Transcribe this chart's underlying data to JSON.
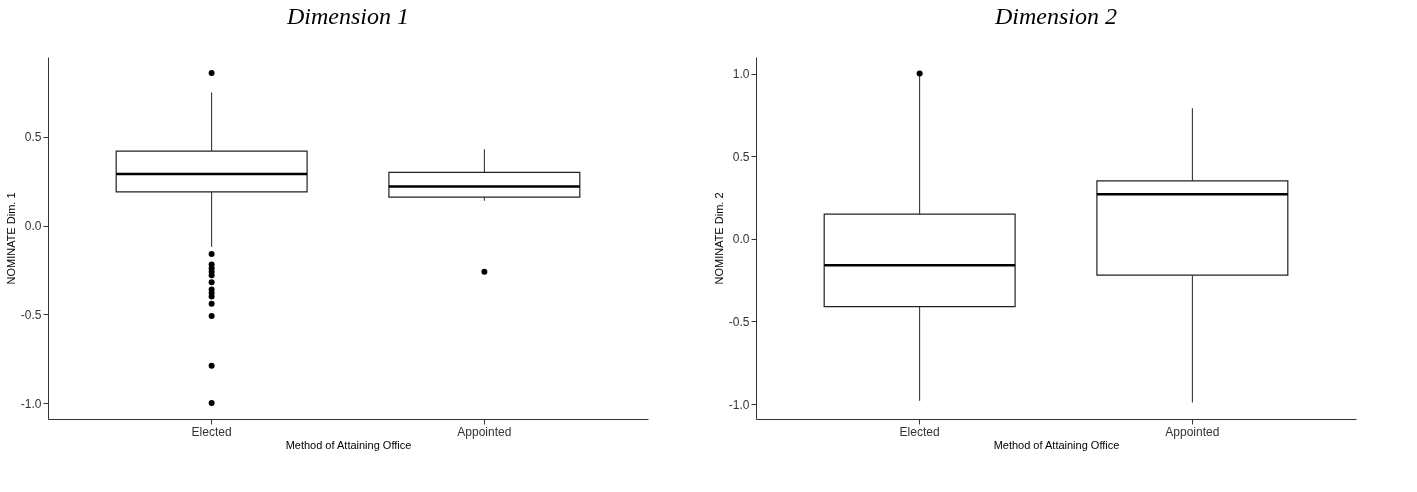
{
  "chart_data": [
    {
      "type": "box",
      "title": "Dimension 1",
      "xlabel": "Method of Attaining Office",
      "ylabel": "NOMINATE Dim. 1",
      "categories": [
        "Elected",
        "Appointed"
      ],
      "boxes": [
        {
          "low": -0.12,
          "q1": 0.19,
          "median": 0.29,
          "q3": 0.42,
          "high": 0.75,
          "outliers": [
            0.86,
            -0.16,
            -0.22,
            -0.24,
            -0.26,
            -0.28,
            -0.32,
            -0.36,
            -0.38,
            -0.4,
            -0.44,
            -0.51,
            -0.79,
            -1.0
          ]
        },
        {
          "low": 0.14,
          "q1": 0.16,
          "median": 0.22,
          "q3": 0.3,
          "high": 0.43,
          "outliers": [
            -0.26
          ]
        }
      ],
      "ylim": [
        -1.09,
        0.95
      ],
      "yticks": [
        {
          "value": -1,
          "label": "-1.0"
        },
        {
          "value": -0.5,
          "label": "-0.5"
        },
        {
          "value": 0,
          "label": "0.0"
        },
        {
          "value": 0.5,
          "label": "0.5"
        }
      ]
    },
    {
      "type": "box",
      "title": "Dimension 2",
      "xlabel": "Method of Attaining Office",
      "ylabel": "NOMINATE Dim. 2",
      "categories": [
        "Elected",
        "Appointed"
      ],
      "boxes": [
        {
          "low": -0.98,
          "q1": -0.41,
          "median": -0.16,
          "q3": 0.15,
          "high": 0.99,
          "outliers": [
            1.0
          ]
        },
        {
          "low": -0.99,
          "q1": -0.22,
          "median": 0.27,
          "q3": 0.35,
          "high": 0.79
        }
      ],
      "ylim": [
        -1.09,
        1.1
      ],
      "yticks": [
        {
          "value": -1,
          "label": "-1.0"
        },
        {
          "value": -0.5,
          "label": "-0.5"
        },
        {
          "value": 0,
          "label": "0.0"
        },
        {
          "value": 0.5,
          "label": "0.5"
        },
        {
          "value": 1,
          "label": "1.0"
        }
      ]
    }
  ]
}
